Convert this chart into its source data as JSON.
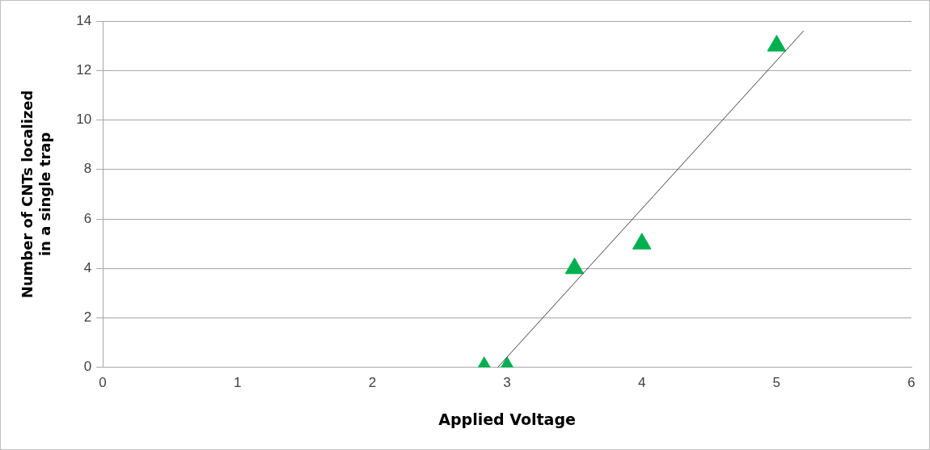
{
  "chart_data": {
    "type": "scatter",
    "xlabel": "Applied Voltage",
    "ylabel": "Number of CNTs localized\nin a single trap",
    "xlim": [
      0,
      6
    ],
    "xticks": [
      0,
      1,
      2,
      3,
      4,
      5,
      6
    ],
    "ylim": [
      0,
      14
    ],
    "yticks": [
      0,
      2,
      4,
      6,
      8,
      10,
      12,
      14
    ],
    "grid": "y",
    "legend": false,
    "marker": "triangle",
    "series": [
      {
        "color": "#00b050",
        "x": [
          2.83,
          3,
          3.5,
          4,
          5
        ],
        "values": [
          0,
          0,
          4,
          5,
          13
        ]
      },
      {
        "type": "line",
        "marker": "none",
        "color": "#404040",
        "x": [
          2.93,
          5.2
        ],
        "values": [
          0,
          13.6
        ]
      }
    ]
  }
}
